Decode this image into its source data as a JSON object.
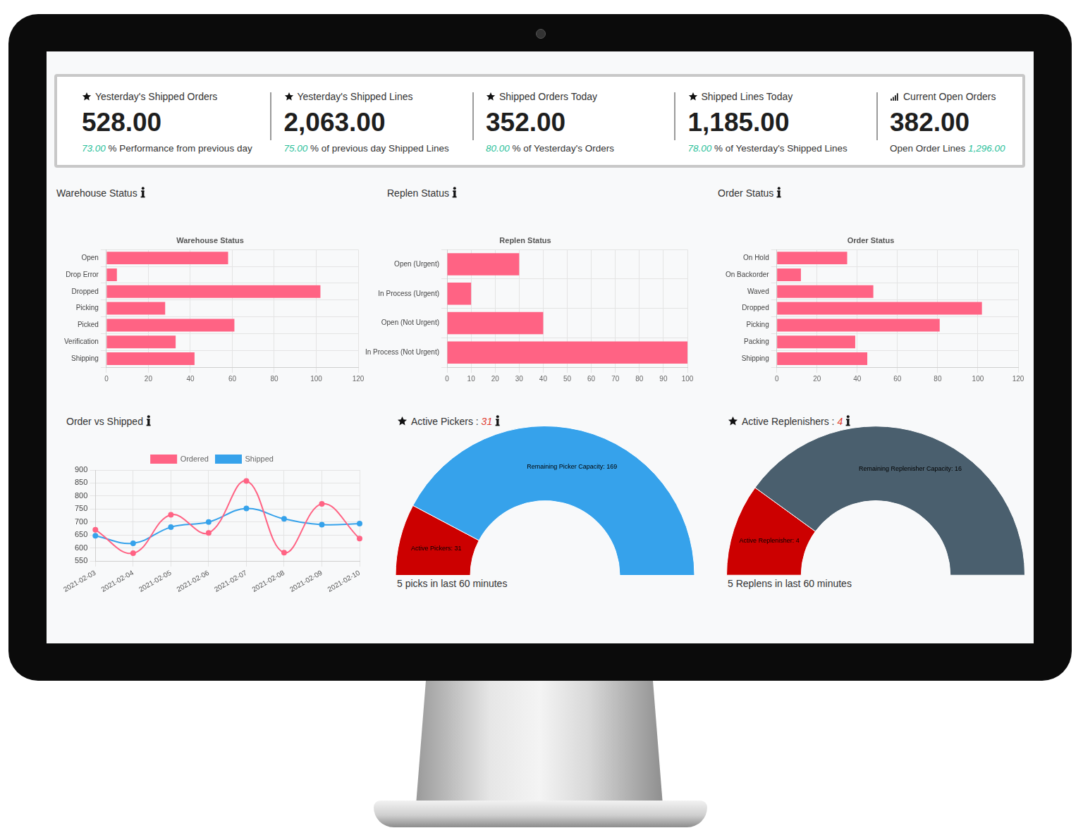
{
  "kpis": [
    {
      "title": "Yesterday's Shipped Orders",
      "value": "528.00",
      "sub": [
        {
          "text": "73.00",
          "accent": true
        },
        {
          "text": "% Performance from previous day",
          "accent": false
        }
      ]
    },
    {
      "title": "Yesterday's Shipped Lines",
      "value": "2,063.00",
      "sub": [
        {
          "text": "75.00",
          "accent": true
        },
        {
          "text": "% of previous day Shipped Lines",
          "accent": false
        }
      ]
    },
    {
      "title": "Shipped Orders Today",
      "value": "352.00",
      "sub": [
        {
          "text": "80.00",
          "accent": true
        },
        {
          "text": "% of Yesterday's Orders",
          "accent": false
        }
      ]
    },
    {
      "title": "Shipped Lines Today",
      "value": "1,185.00",
      "sub": [
        {
          "text": "78.00",
          "accent": true
        },
        {
          "text": "% of Yesterday's Shipped Lines",
          "accent": false
        }
      ]
    },
    {
      "title": "Current Open Orders",
      "value": "382.00",
      "sub": [
        {
          "text": "Open Order Lines",
          "accent": false
        },
        {
          "text": "1,296.00",
          "accent": true
        }
      ]
    }
  ],
  "chart_data": [
    {
      "type": "bar",
      "orientation": "horizontal",
      "panel_title": "Warehouse Status",
      "title": "Warehouse Status",
      "categories": [
        "Open",
        "Drop Error",
        "Dropped",
        "Picking",
        "Picked",
        "Verification",
        "Shipping"
      ],
      "values": [
        58,
        5,
        102,
        28,
        61,
        33,
        42
      ],
      "color": "#ff6384",
      "xlim": [
        0,
        120
      ],
      "xticks": [
        0,
        20,
        40,
        60,
        80,
        100,
        120
      ],
      "grid": true
    },
    {
      "type": "bar",
      "orientation": "horizontal",
      "panel_title": "Replen Status",
      "title": "Replen Status",
      "categories": [
        "Open (Urgent)",
        "In Process (Urgent)",
        "Open (Not Urgent)",
        "In Process (Not Urgent)"
      ],
      "values": [
        30,
        10,
        40,
        100
      ],
      "color": "#ff6384",
      "xlim": [
        0,
        100
      ],
      "xticks": [
        0,
        10,
        20,
        30,
        40,
        50,
        60,
        70,
        80,
        90,
        100
      ],
      "grid": true
    },
    {
      "type": "bar",
      "orientation": "horizontal",
      "panel_title": "Order Status",
      "title": "Order Status",
      "categories": [
        "On Hold",
        "On Backorder",
        "Waved",
        "Dropped",
        "Picking",
        "Packing",
        "Shipping"
      ],
      "values": [
        35,
        12,
        48,
        102,
        81,
        39,
        45
      ],
      "color": "#ff6384",
      "xlim": [
        0,
        120
      ],
      "xticks": [
        0,
        20,
        40,
        60,
        80,
        100,
        120
      ],
      "grid": true
    },
    {
      "type": "line",
      "panel_title": "Order vs Shipped",
      "x": [
        "2021-02-03",
        "2021-02-04",
        "2021-02-05",
        "2021-02-06",
        "2021-02-07",
        "2021-02-08",
        "2021-02-09",
        "2021-02-10"
      ],
      "series": [
        {
          "name": "Ordered",
          "color": "#ff6384",
          "values": [
            670,
            580,
            728,
            658,
            858,
            582,
            770,
            636
          ]
        },
        {
          "name": "Shipped",
          "color": "#36a2eb",
          "values": [
            647,
            618,
            680,
            700,
            752,
            712,
            690,
            694
          ]
        }
      ],
      "ylim": [
        550,
        900
      ],
      "yticks": [
        550,
        600,
        650,
        700,
        750,
        800,
        850,
        900
      ],
      "legend": "top",
      "grid": true,
      "marker": "circle",
      "line_style": "smooth"
    },
    {
      "type": "doughnut",
      "panel_title": "Active Pickers :",
      "panel_count": "31",
      "categories": [
        "Active Pickers: 31",
        "Remaining Picker Capacity: 169"
      ],
      "values": [
        31,
        169
      ],
      "colors": [
        "#cc0000",
        "#36a2eb"
      ],
      "footer": "5 picks in last 60 minutes"
    },
    {
      "type": "doughnut",
      "panel_title": "Active Replenishers :",
      "panel_count": "4",
      "categories": [
        "Active Replenisher: 4",
        "Remaining Replenisher Capacity: 16"
      ],
      "values": [
        4,
        16
      ],
      "colors": [
        "#cc0000",
        "#4a5f6e"
      ],
      "footer": "5 Replens in last 60 minutes"
    }
  ]
}
